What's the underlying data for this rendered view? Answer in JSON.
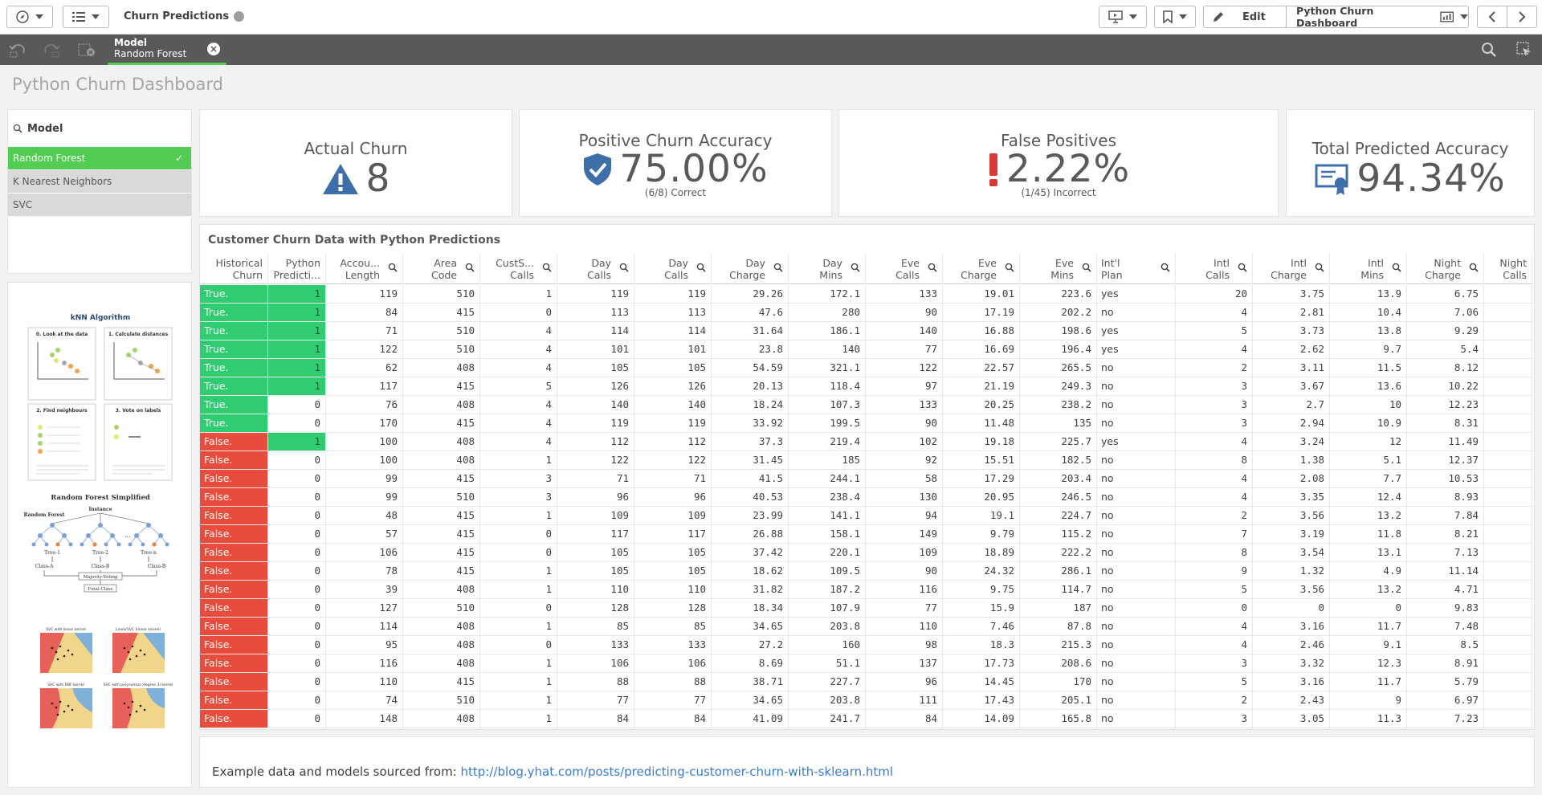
{
  "toolbar": {
    "app_title": "Churn Predictions",
    "edit_label": "Edit",
    "sheet_name": "Python Churn Dashboard"
  },
  "selection": {
    "field": "Model",
    "value": "Random Forest"
  },
  "sheet": {
    "title": "Python Churn Dashboard"
  },
  "filter": {
    "title": "Model",
    "items": [
      {
        "label": "Random Forest",
        "state": "selected"
      },
      {
        "label": "K Nearest Neighbors",
        "state": "alternative"
      },
      {
        "label": "SVC",
        "state": "alternative"
      }
    ]
  },
  "kpis": {
    "actual_churn": {
      "title": "Actual Churn",
      "value": "8"
    },
    "positive_accuracy": {
      "title": "Positive Churn Accuracy",
      "value": "75.00%",
      "sub": "(6/8) Correct"
    },
    "false_positives": {
      "title": "False Positives",
      "value": "2.22%",
      "sub": "(1/45) Incorrect"
    },
    "total_accuracy": {
      "title": "Total Predicted Accuracy",
      "value": "94.34%"
    }
  },
  "images": {
    "knn": {
      "title": "kNN Algorithm",
      "steps": [
        "0. Look at the data",
        "1. Calculate distances",
        "2. Find neighbours",
        "3. Vote on labels"
      ]
    },
    "rf": {
      "title": "Random Forest Simplified",
      "labels": [
        "Random Forest",
        "Instance",
        "Tree-1",
        "Tree-2",
        "Tree-n",
        "Class-A",
        "Class-B",
        "Class-B",
        "Majority-Voting",
        "Final-Class"
      ]
    },
    "svc": {
      "titles": [
        "SVC with linear kernel",
        "LinearSVC (linear kernel)",
        "SVC with RBF kernel",
        "SVC with polynomial (degree 3) kernel"
      ]
    }
  },
  "table": {
    "title": "Customer Churn Data with Python Predictions",
    "columns": [
      {
        "l1": "Historical",
        "l2": "Churn"
      },
      {
        "l1": "Python",
        "l2": "Predicti..."
      },
      {
        "l1": "Accou...",
        "l2": "Length"
      },
      {
        "l1": "Area",
        "l2": "Code"
      },
      {
        "l1": "CustS...",
        "l2": "Calls"
      },
      {
        "l1": "Day",
        "l2": "Calls"
      },
      {
        "l1": "Day",
        "l2": "Calls"
      },
      {
        "l1": "Day",
        "l2": "Charge"
      },
      {
        "l1": "Day",
        "l2": "Mins"
      },
      {
        "l1": "Eve",
        "l2": "Calls"
      },
      {
        "l1": "Eve",
        "l2": "Charge"
      },
      {
        "l1": "Eve",
        "l2": "Mins"
      },
      {
        "l1": "Int'l",
        "l2": "Plan"
      },
      {
        "l1": "Intl",
        "l2": "Calls"
      },
      {
        "l1": "Intl",
        "l2": "Charge"
      },
      {
        "l1": "Intl",
        "l2": "Mins"
      },
      {
        "l1": "Night",
        "l2": "Charge"
      },
      {
        "l1": "Night",
        "l2": "Calls"
      }
    ],
    "rows": [
      [
        "True.",
        "1",
        "119",
        "510",
        "1",
        "119",
        "119",
        "29.26",
        "172.1",
        "133",
        "19.01",
        "223.6",
        "yes",
        "20",
        "3.75",
        "13.9",
        "6.75",
        ""
      ],
      [
        "True.",
        "1",
        "84",
        "415",
        "0",
        "113",
        "113",
        "47.6",
        "280",
        "90",
        "17.19",
        "202.2",
        "no",
        "4",
        "2.81",
        "10.4",
        "7.06",
        ""
      ],
      [
        "True.",
        "1",
        "71",
        "510",
        "4",
        "114",
        "114",
        "31.64",
        "186.1",
        "140",
        "16.88",
        "198.6",
        "yes",
        "5",
        "3.73",
        "13.8",
        "9.29",
        ""
      ],
      [
        "True.",
        "1",
        "122",
        "510",
        "4",
        "101",
        "101",
        "23.8",
        "140",
        "77",
        "16.69",
        "196.4",
        "yes",
        "4",
        "2.62",
        "9.7",
        "5.4",
        ""
      ],
      [
        "True.",
        "1",
        "62",
        "408",
        "4",
        "105",
        "105",
        "54.59",
        "321.1",
        "122",
        "22.57",
        "265.5",
        "no",
        "2",
        "3.11",
        "11.5",
        "8.12",
        ""
      ],
      [
        "True.",
        "1",
        "117",
        "415",
        "5",
        "126",
        "126",
        "20.13",
        "118.4",
        "97",
        "21.19",
        "249.3",
        "no",
        "3",
        "3.67",
        "13.6",
        "10.22",
        ""
      ],
      [
        "True.",
        "0",
        "76",
        "408",
        "4",
        "140",
        "140",
        "18.24",
        "107.3",
        "133",
        "20.25",
        "238.2",
        "no",
        "3",
        "2.7",
        "10",
        "12.23",
        ""
      ],
      [
        "True.",
        "0",
        "170",
        "415",
        "4",
        "119",
        "119",
        "33.92",
        "199.5",
        "90",
        "11.48",
        "135",
        "no",
        "3",
        "2.94",
        "10.9",
        "8.31",
        ""
      ],
      [
        "False.",
        "1",
        "100",
        "408",
        "4",
        "112",
        "112",
        "37.3",
        "219.4",
        "102",
        "19.18",
        "225.7",
        "yes",
        "4",
        "3.24",
        "12",
        "11.49",
        ""
      ],
      [
        "False.",
        "0",
        "100",
        "408",
        "1",
        "122",
        "122",
        "31.45",
        "185",
        "92",
        "15.51",
        "182.5",
        "no",
        "8",
        "1.38",
        "5.1",
        "12.37",
        ""
      ],
      [
        "False.",
        "0",
        "99",
        "415",
        "3",
        "71",
        "71",
        "41.5",
        "244.1",
        "58",
        "17.29",
        "203.4",
        "no",
        "4",
        "2.08",
        "7.7",
        "10.53",
        ""
      ],
      [
        "False.",
        "0",
        "99",
        "510",
        "3",
        "96",
        "96",
        "40.53",
        "238.4",
        "130",
        "20.95",
        "246.5",
        "no",
        "4",
        "3.35",
        "12.4",
        "8.93",
        ""
      ],
      [
        "False.",
        "0",
        "48",
        "415",
        "1",
        "109",
        "109",
        "23.99",
        "141.1",
        "94",
        "19.1",
        "224.7",
        "no",
        "2",
        "3.56",
        "13.2",
        "7.84",
        ""
      ],
      [
        "False.",
        "0",
        "57",
        "415",
        "0",
        "117",
        "117",
        "26.88",
        "158.1",
        "149",
        "9.79",
        "115.2",
        "no",
        "7",
        "3.19",
        "11.8",
        "8.21",
        ""
      ],
      [
        "False.",
        "0",
        "106",
        "415",
        "0",
        "105",
        "105",
        "37.42",
        "220.1",
        "109",
        "18.89",
        "222.2",
        "no",
        "8",
        "3.54",
        "13.1",
        "7.13",
        ""
      ],
      [
        "False.",
        "0",
        "78",
        "415",
        "1",
        "105",
        "105",
        "18.62",
        "109.5",
        "90",
        "24.32",
        "286.1",
        "no",
        "9",
        "1.32",
        "4.9",
        "11.14",
        ""
      ],
      [
        "False.",
        "0",
        "39",
        "408",
        "1",
        "110",
        "110",
        "31.82",
        "187.2",
        "116",
        "9.75",
        "114.7",
        "no",
        "5",
        "3.56",
        "13.2",
        "4.71",
        ""
      ],
      [
        "False.",
        "0",
        "127",
        "510",
        "0",
        "128",
        "128",
        "18.34",
        "107.9",
        "77",
        "15.9",
        "187",
        "no",
        "0",
        "0",
        "0",
        "9.83",
        ""
      ],
      [
        "False.",
        "0",
        "114",
        "408",
        "1",
        "85",
        "85",
        "34.65",
        "203.8",
        "110",
        "7.46",
        "87.8",
        "no",
        "4",
        "3.16",
        "11.7",
        "7.48",
        ""
      ],
      [
        "False.",
        "0",
        "95",
        "408",
        "0",
        "133",
        "133",
        "27.2",
        "160",
        "98",
        "18.3",
        "215.3",
        "no",
        "4",
        "2.46",
        "9.1",
        "8.5",
        ""
      ],
      [
        "False.",
        "0",
        "116",
        "408",
        "1",
        "106",
        "106",
        "8.69",
        "51.1",
        "137",
        "17.73",
        "208.6",
        "no",
        "3",
        "3.32",
        "12.3",
        "8.91",
        ""
      ],
      [
        "False.",
        "0",
        "110",
        "415",
        "1",
        "88",
        "88",
        "38.71",
        "227.7",
        "96",
        "14.45",
        "170",
        "no",
        "5",
        "3.16",
        "11.7",
        "5.79",
        ""
      ],
      [
        "False.",
        "0",
        "74",
        "510",
        "1",
        "77",
        "77",
        "34.65",
        "203.8",
        "111",
        "17.43",
        "205.1",
        "no",
        "2",
        "2.43",
        "9",
        "6.97",
        ""
      ],
      [
        "False.",
        "0",
        "148",
        "408",
        "1",
        "84",
        "84",
        "41.09",
        "241.7",
        "84",
        "14.09",
        "165.8",
        "no",
        "3",
        "3.05",
        "11.3",
        "7.23",
        ""
      ]
    ]
  },
  "footer": {
    "prefix": "Example data and models sourced from: ",
    "link": "http://blog.yhat.com/posts/predicting-customer-churn-with-sklearn.html"
  },
  "colors": {
    "selected_green": "#52cc52",
    "true_green": "#2fcc71",
    "false_red": "#e74c3c",
    "kpi_blue": "#3f6fa8",
    "alert_red": "#d83a3a"
  }
}
